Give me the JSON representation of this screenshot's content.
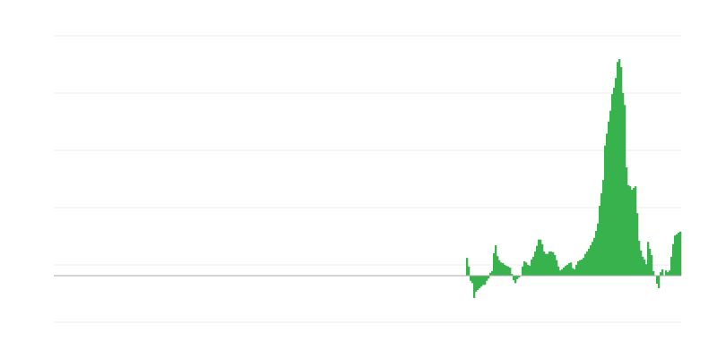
{
  "chart_data": {
    "type": "bar",
    "title": "",
    "xlabel": "",
    "ylabel": "",
    "ylim": [
      -0.8125,
      4.1875
    ],
    "gridlines": [
      -0.8125,
      0.1875,
      1.1875,
      2.1875,
      3.1875,
      4.1875
    ],
    "grid": true,
    "legend": "none",
    "bar_color": "#37b24d",
    "zero_line_color": "#aaaaaa",
    "grid_color": "#eeeeee",
    "values": [
      0.31,
      0.16,
      -0.09,
      -0.13,
      -0.39,
      -0.28,
      -0.25,
      -0.22,
      -0.19,
      -0.16,
      -0.16,
      -0.09,
      -0.05,
      0.05,
      0.08,
      0.39,
      0.53,
      0.34,
      0.27,
      0.23,
      0.22,
      0.19,
      0.17,
      0.16,
      0.14,
      0.03,
      -0.08,
      -0.13,
      -0.06,
      -0.03,
      0,
      0.16,
      0.25,
      0.23,
      0.19,
      0.17,
      0.28,
      0.33,
      0.42,
      0.52,
      0.63,
      0.63,
      0.55,
      0.42,
      0.38,
      0.38,
      0.42,
      0.42,
      0.41,
      0.36,
      0.27,
      0.16,
      0.09,
      0.11,
      0.14,
      0.17,
      0.19,
      0.22,
      0.23,
      0.13,
      0.11,
      0.19,
      0.25,
      0.27,
      0.28,
      0.31,
      0.38,
      0.42,
      0.47,
      0.53,
      0.59,
      0.66,
      0.78,
      0.91,
      1.22,
      1.44,
      1.67,
      2.27,
      2.48,
      2.69,
      2.88,
      3.17,
      3.28,
      3.45,
      3.73,
      3.78,
      3.64,
      3.19,
      2.98,
      1.89,
      1.58,
      1.56,
      1.5,
      1.53,
      1.56,
      1.09,
      0.61,
      0.44,
      0.33,
      0.28,
      0.2,
      0.59,
      0.47,
      0.36,
      0.08,
      0,
      -0.14,
      -0.22,
      0.06,
      0.11,
      0,
      0.09,
      0.06,
      0.09,
      0.33,
      0.55,
      0.7,
      0.72,
      0.75,
      0.77
    ]
  }
}
